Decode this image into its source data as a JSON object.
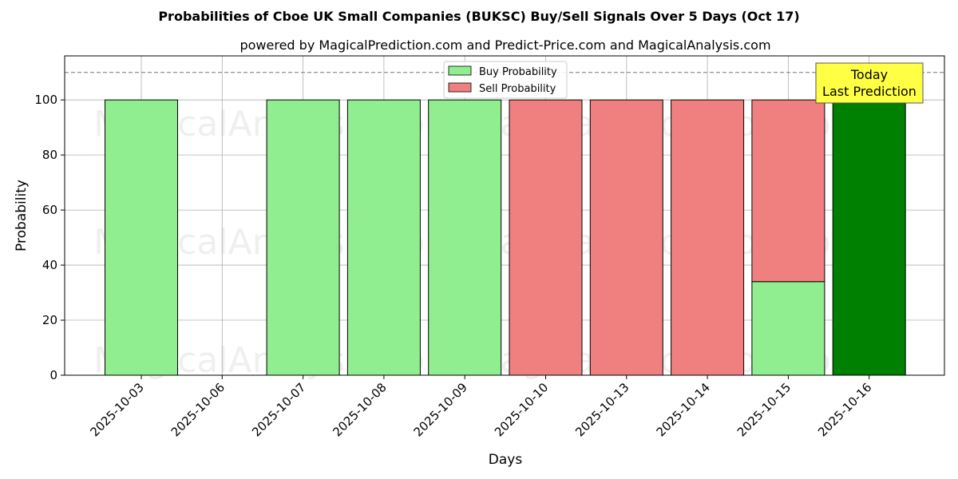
{
  "chart_data": {
    "type": "bar",
    "stacked": true,
    "title": "Probabilities of Cboe UK Small Companies (BUKSC) Buy/Sell Signals Over 5 Days (Oct 17)",
    "subtitle": "powered by MagicalPrediction.com and Predict-Price.com and MagicalAnalysis.com",
    "xlabel": "Days",
    "ylabel": "Probability",
    "ylim": [
      0,
      116
    ],
    "yticks": [
      0,
      20,
      40,
      60,
      80,
      100
    ],
    "reference_line": 110,
    "grid": true,
    "legend_position": "top-center",
    "categories": [
      "2025-10-03",
      "2025-10-06",
      "2025-10-07",
      "2025-10-08",
      "2025-10-09",
      "2025-10-10",
      "2025-10-13",
      "2025-10-14",
      "2025-10-15",
      "2025-10-16"
    ],
    "series": [
      {
        "name": "Buy Probability",
        "color": "#90ee90",
        "values": [
          100,
          0,
          100,
          100,
          100,
          0,
          0,
          0,
          34,
          100
        ]
      },
      {
        "name": "Sell Probability",
        "color": "#f08080",
        "values": [
          0,
          0,
          0,
          0,
          0,
          100,
          100,
          100,
          66,
          0
        ]
      }
    ],
    "highlight": {
      "index": 9,
      "color": "#008000"
    },
    "annotation": {
      "line1": "Today",
      "line2": "Last Prediction",
      "background": "#ffff44"
    },
    "watermarks": [
      "MagicalAnalysis.com",
      "MagicalPrediction.com"
    ]
  }
}
